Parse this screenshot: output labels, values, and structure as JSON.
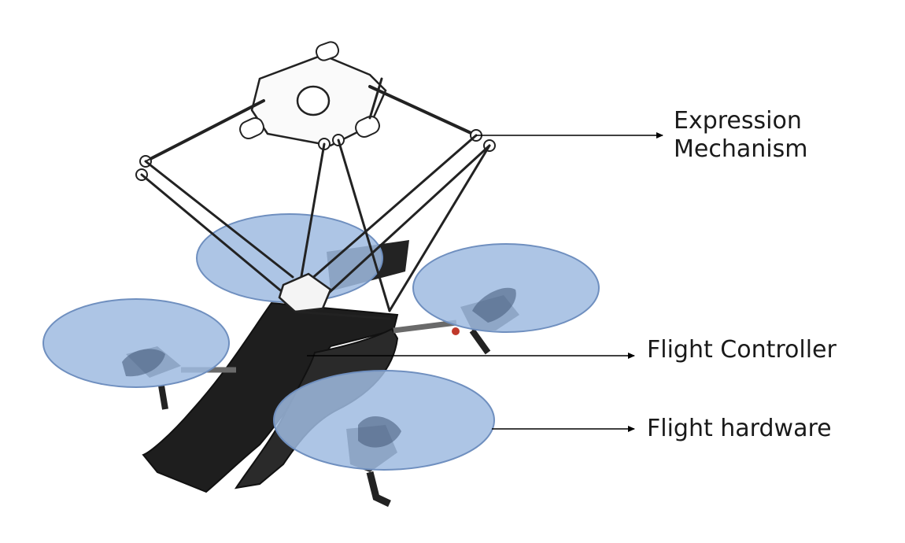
{
  "labels": {
    "expression_line1": "Expression",
    "expression_line2": "Mechanism",
    "flight_controller": "Flight Controller",
    "flight_hardware": "Flight hardware"
  },
  "colors": {
    "propeller_fill": "#9fbbe0",
    "propeller_stroke": "#6f8fbf",
    "mechanism_stroke": "#222222",
    "body_fill": "#1e1e1e",
    "arrow": "#000000"
  }
}
